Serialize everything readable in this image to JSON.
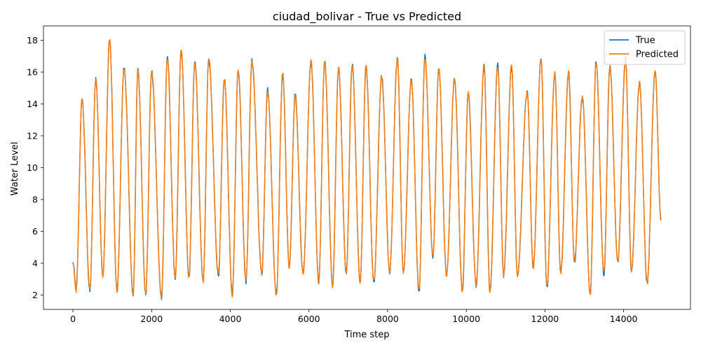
{
  "chart_data": {
    "type": "line",
    "title": "ciudad_bolivar - True vs Predicted",
    "xlabel": "Time step",
    "ylabel": "Water Level",
    "xlim": [
      -750,
      15700
    ],
    "ylim": [
      1.1,
      18.9
    ],
    "xticks": [
      0,
      2000,
      4000,
      6000,
      8000,
      10000,
      12000,
      14000
    ],
    "yticks": [
      2,
      4,
      6,
      8,
      10,
      12,
      14,
      16,
      18
    ],
    "grid": false,
    "legend_position": "top-right",
    "colors": {
      "True": "#1f77b4",
      "Predicted": "#ff7f0e"
    },
    "series": [
      {
        "name": "True"
      },
      {
        "name": "Predicted"
      }
    ],
    "envelope": {
      "x_start": 0,
      "x_end": 14950,
      "start_value": 4.0,
      "end_value": 6.7,
      "troughs": [
        [
          80,
          2.3
        ],
        [
          430,
          2.3
        ],
        [
          760,
          3.2
        ],
        [
          1120,
          2.3
        ],
        [
          1530,
          2.0
        ],
        [
          1850,
          2.1
        ],
        [
          2250,
          1.9
        ],
        [
          2600,
          3.0
        ],
        [
          2950,
          3.2
        ],
        [
          3310,
          2.8
        ],
        [
          3700,
          3.3
        ],
        [
          4050,
          2.0
        ],
        [
          4400,
          2.9
        ],
        [
          4800,
          3.4
        ],
        [
          5170,
          1.9
        ],
        [
          5500,
          3.8
        ],
        [
          5850,
          3.3
        ],
        [
          6250,
          2.9
        ],
        [
          6600,
          2.6
        ],
        [
          6950,
          3.4
        ],
        [
          7300,
          2.8
        ],
        [
          7650,
          2.8
        ],
        [
          8050,
          3.5
        ],
        [
          8400,
          3.4
        ],
        [
          8800,
          2.3
        ],
        [
          9150,
          4.4
        ],
        [
          9500,
          3.3
        ],
        [
          9900,
          2.3
        ],
        [
          10250,
          2.6
        ],
        [
          10600,
          2.2
        ],
        [
          10950,
          3.2
        ],
        [
          11300,
          3.3
        ],
        [
          11700,
          3.7
        ],
        [
          12050,
          2.5
        ],
        [
          12400,
          3.4
        ],
        [
          12750,
          4.1
        ],
        [
          13150,
          2.1
        ],
        [
          13500,
          3.3
        ],
        [
          13850,
          4.2
        ],
        [
          14200,
          3.4
        ],
        [
          14600,
          2.8
        ]
      ],
      "peaks": [
        [
          230,
          14.2
        ],
        [
          580,
          15.6
        ],
        [
          930,
          18.0
        ],
        [
          1300,
          16.3
        ],
        [
          1650,
          16.1
        ],
        [
          2000,
          16.1
        ],
        [
          2400,
          16.9
        ],
        [
          2750,
          17.4
        ],
        [
          3100,
          16.7
        ],
        [
          3450,
          16.8
        ],
        [
          3850,
          15.6
        ],
        [
          4200,
          16.1
        ],
        [
          4550,
          16.8
        ],
        [
          4950,
          14.8
        ],
        [
          5330,
          15.9
        ],
        [
          5650,
          14.5
        ],
        [
          6050,
          16.6
        ],
        [
          6400,
          16.7
        ],
        [
          6750,
          16.2
        ],
        [
          7100,
          16.5
        ],
        [
          7450,
          16.3
        ],
        [
          7850,
          15.8
        ],
        [
          8250,
          16.9
        ],
        [
          8600,
          15.5
        ],
        [
          8950,
          17.0
        ],
        [
          9300,
          16.2
        ],
        [
          9700,
          15.6
        ],
        [
          10050,
          14.6
        ],
        [
          10450,
          16.4
        ],
        [
          10800,
          16.4
        ],
        [
          11150,
          16.4
        ],
        [
          11550,
          14.8
        ],
        [
          11900,
          16.8
        ],
        [
          12250,
          16.0
        ],
        [
          12600,
          15.9
        ],
        [
          12950,
          14.5
        ],
        [
          13300,
          16.6
        ],
        [
          13650,
          16.4
        ],
        [
          14050,
          16.8
        ],
        [
          14400,
          15.3
        ],
        [
          14800,
          16.1
        ]
      ]
    }
  }
}
